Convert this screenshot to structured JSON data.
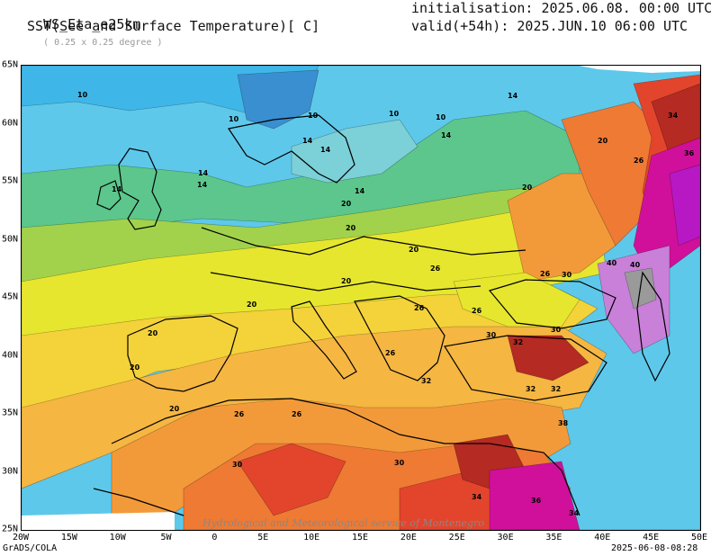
{
  "header": {
    "model": "WS_Eta_e25km",
    "resolution": "( 0.25 x 0.25 degree )",
    "field": "SST(See and Surface Temperature)[ C]",
    "initialisation": "initialisation: 2025.06.08. 00:00 UTC",
    "valid": "valid(+54h): 2025.JUN.10 06:00 UTC"
  },
  "axes": {
    "x_ticks": [
      "20W",
      "15W",
      "10W",
      "5W",
      "0",
      "5E",
      "10E",
      "15E",
      "20E",
      "25E",
      "30E",
      "35E",
      "40E",
      "45E",
      "50E"
    ],
    "y_ticks": [
      "65N",
      "60N",
      "55N",
      "50N",
      "45N",
      "40N",
      "35N",
      "30N",
      "25N"
    ]
  },
  "footer": {
    "left": "GrADS/COLA",
    "right": "2025-06-08-08:28",
    "watermark": "Hydrological and Meteorological service of Montenegro"
  },
  "contour_labels": [
    "10",
    "10",
    "10",
    "10",
    "10",
    "14",
    "14",
    "14",
    "14",
    "14",
    "14",
    "14",
    "14",
    "20",
    "20",
    "20",
    "20",
    "20",
    "20",
    "20",
    "20",
    "20",
    "20",
    "26",
    "26",
    "26",
    "26",
    "26",
    "26",
    "26",
    "26",
    "30",
    "30",
    "30",
    "30",
    "30",
    "32",
    "32",
    "32",
    "32",
    "34",
    "34",
    "34",
    "36",
    "36",
    "38",
    "40",
    "40"
  ],
  "colors": {
    "c8": "#3a8fd0",
    "c10": "#3fb6e8",
    "c12": "#5ec8ea",
    "c14": "#7cd0d8",
    "c16": "#5cc68c",
    "c18": "#a2d24c",
    "c20": "#e6e62e",
    "c22": "#f4d23a",
    "c24": "#f5b642",
    "c26": "#f29a3a",
    "c28": "#ee7a34",
    "c30": "#e2452c",
    "c32": "#b52a22",
    "c34": "#d0109a",
    "c36": "#b818c4",
    "c38": "#c880d8",
    "c40": "#9a9a9a"
  }
}
